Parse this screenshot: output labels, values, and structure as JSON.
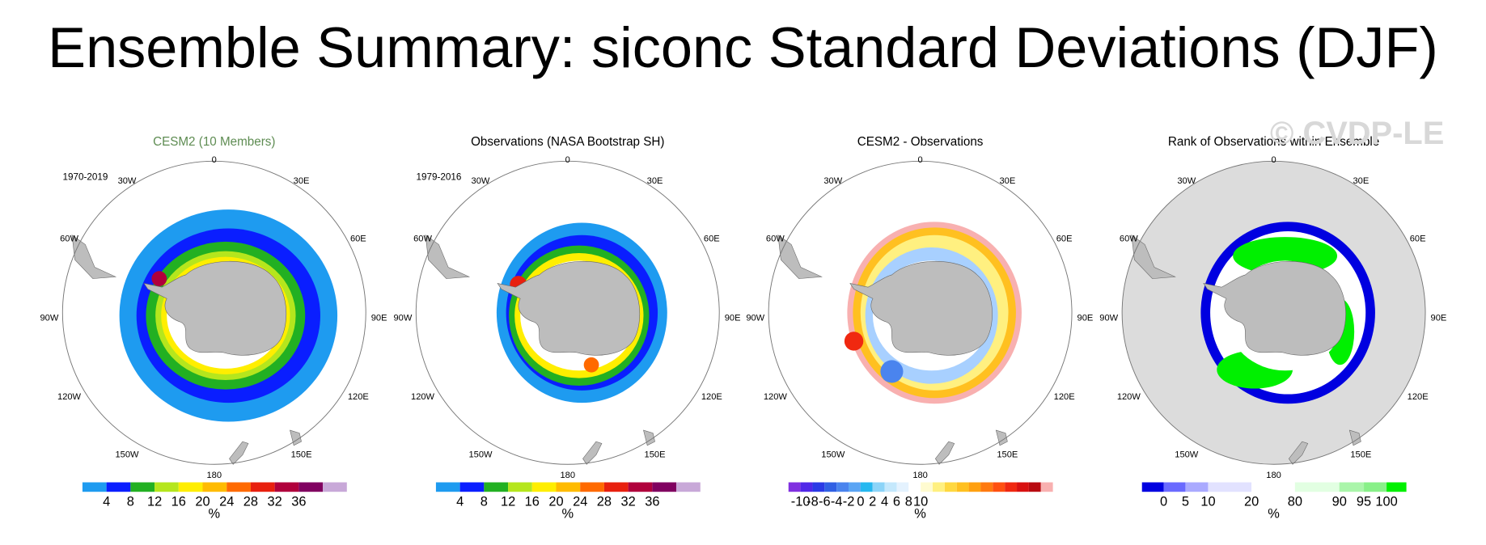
{
  "title": "Ensemble Summary: siconc Standard Deviations (DJF)",
  "watermark": "© CVDP-LE",
  "panels": [
    {
      "title": "CESM2 (10 Members)",
      "period": "1970-2019",
      "longitude_labels": [
        "0",
        "30E",
        "60E",
        "90E",
        "120E",
        "150E",
        "180",
        "150W",
        "120W",
        "90W",
        "60W",
        "30W"
      ],
      "colorbar": {
        "colors": [
          "#1e9bf0",
          "#0a1eff",
          "#22b022",
          "#b5e61d",
          "#ffee00",
          "#ffbb00",
          "#ff6a00",
          "#e8200e",
          "#b0003c",
          "#800060",
          "#c8a8d8"
        ],
        "labels": [
          4,
          8,
          12,
          16,
          20,
          24,
          28,
          32,
          36
        ],
        "units": "%"
      }
    },
    {
      "title": "Observations (NASA Bootstrap SH)",
      "period": "1979-2016",
      "longitude_labels": [
        "0",
        "30E",
        "60E",
        "90E",
        "120E",
        "150E",
        "180",
        "150W",
        "120W",
        "90W",
        "60W",
        "30W"
      ],
      "colorbar": {
        "colors": [
          "#1e9bf0",
          "#0a1eff",
          "#22b022",
          "#b5e61d",
          "#ffee00",
          "#ffbb00",
          "#ff6a00",
          "#e8200e",
          "#b0003c",
          "#800060",
          "#c8a8d8"
        ],
        "labels": [
          4,
          8,
          12,
          16,
          20,
          24,
          28,
          32,
          36
        ],
        "units": "%"
      }
    },
    {
      "title": "CESM2 - Observations",
      "longitude_labels": [
        "0",
        "30E",
        "60E",
        "90E",
        "120E",
        "150E",
        "180",
        "150W",
        "120W",
        "90W",
        "60W",
        "30W"
      ],
      "colorbar": {
        "colors": [
          "#8030e0",
          "#5028e8",
          "#2a3ae6",
          "#3060e4",
          "#4a84ee",
          "#5aa4f4",
          "#26b8f0",
          "#8cd4f8",
          "#c4e8fc",
          "#e4f2fe",
          "#ffffff",
          "#fffbd0",
          "#fff080",
          "#ffd840",
          "#ffc020",
          "#ffa010",
          "#ff7a10",
          "#ff5010",
          "#f02810",
          "#d81010",
          "#b80a10",
          "#f8b0b0"
        ],
        "labels": [
          -10,
          -8,
          -6,
          -4,
          -2,
          0,
          2,
          4,
          6,
          8,
          10
        ],
        "units": "%"
      }
    },
    {
      "title": "Rank of Observations within Ensemble",
      "longitude_labels": [
        "0",
        "30E",
        "60E",
        "90E",
        "120E",
        "150E",
        "180",
        "150W",
        "120W",
        "90W",
        "60W",
        "30W"
      ],
      "colorbar": {
        "colors": [
          "#0000e0",
          "#6a6aff",
          "#aaaaff",
          "#e2e2ff",
          "#ffffff",
          "#e2ffe2",
          "#aaf5aa",
          "#88f088",
          "#00f000"
        ],
        "labels": [
          0,
          5,
          10,
          20,
          80,
          90,
          95,
          100
        ],
        "units": "%"
      }
    }
  ]
}
